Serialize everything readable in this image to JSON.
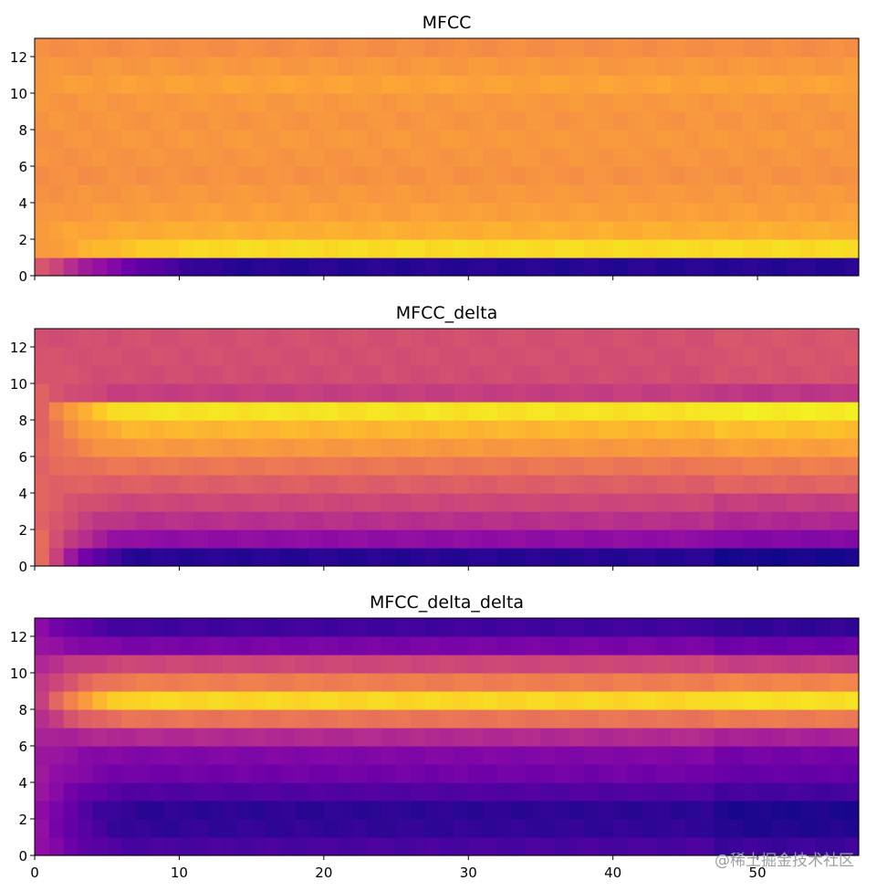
{
  "chart_data": [
    {
      "type": "heatmap",
      "title": "MFCC",
      "colormap": "plasma",
      "xlim": [
        0,
        57
      ],
      "ylim": [
        0,
        13
      ],
      "yticks": [
        0,
        2,
        4,
        6,
        8,
        10,
        12
      ],
      "xticks": [
        0,
        10,
        20,
        30,
        40,
        50
      ],
      "show_xticklabels": false,
      "n_rows": 13,
      "n_frames": 57,
      "row_levels": [
        0.05,
        0.93,
        0.82,
        0.78,
        0.76,
        0.74,
        0.75,
        0.76,
        0.75,
        0.76,
        0.79,
        0.76,
        0.73
      ],
      "onset_levels": [
        0.55,
        0.76,
        0.78,
        0.75,
        0.74,
        0.73,
        0.74,
        0.74,
        0.75,
        0.75,
        0.77,
        0.75,
        0.73
      ],
      "ramp_frames": 14
    },
    {
      "type": "heatmap",
      "title": "MFCC_delta",
      "colormap": "plasma",
      "xlim": [
        0,
        57
      ],
      "ylim": [
        0,
        13
      ],
      "yticks": [
        0,
        2,
        4,
        6,
        8,
        10,
        12
      ],
      "xticks": [
        0,
        10,
        20,
        30,
        40,
        50
      ],
      "show_xticklabels": false,
      "n_rows": 13,
      "n_frames": 57,
      "row_levels": [
        0.05,
        0.3,
        0.42,
        0.5,
        0.58,
        0.66,
        0.76,
        0.84,
        0.95,
        0.47,
        0.52,
        0.53,
        0.53
      ],
      "onset_levels": [
        0.62,
        0.62,
        0.6,
        0.6,
        0.6,
        0.6,
        0.6,
        0.6,
        0.6,
        0.58,
        0.56,
        0.54,
        0.52
      ],
      "ramp_frames": 7
    },
    {
      "type": "heatmap",
      "title": "MFCC_delta_delta",
      "colormap": "plasma",
      "xlim": [
        0,
        57
      ],
      "ylim": [
        0,
        13
      ],
      "yticks": [
        0,
        2,
        4,
        6,
        8,
        10,
        12
      ],
      "xticks": [
        0,
        10,
        20,
        30,
        40,
        50
      ],
      "xticklabels": [
        "0",
        "10",
        "20",
        "30",
        "40",
        "50"
      ],
      "show_xticklabels": true,
      "n_rows": 13,
      "n_frames": 57,
      "row_levels": [
        0.12,
        0.07,
        0.06,
        0.14,
        0.22,
        0.26,
        0.4,
        0.65,
        0.92,
        0.68,
        0.5,
        0.24,
        0.1
      ],
      "onset_levels": [
        0.3,
        0.3,
        0.3,
        0.32,
        0.34,
        0.34,
        0.36,
        0.42,
        0.48,
        0.44,
        0.4,
        0.32,
        0.28
      ],
      "ramp_frames": 7
    }
  ],
  "watermark": "@稀土掘金技术社区"
}
